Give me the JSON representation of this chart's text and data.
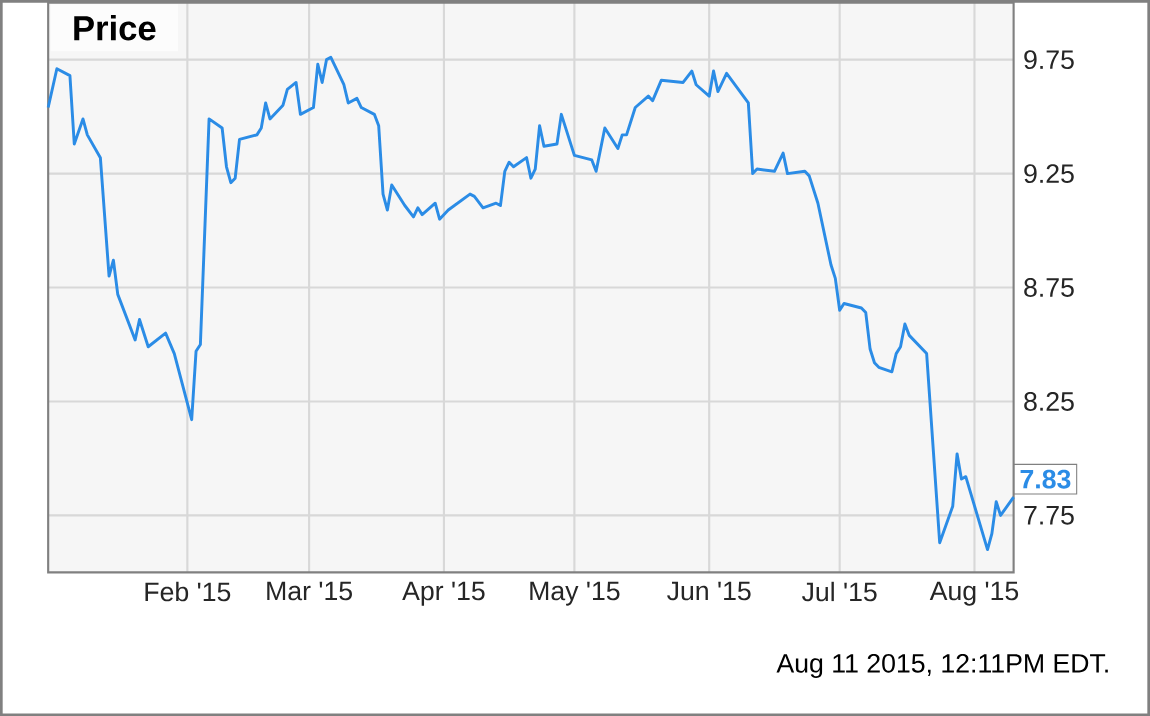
{
  "chart_data": {
    "type": "line",
    "title": "Price",
    "x": [
      "2014-12-31",
      "2015-01-02",
      "2015-01-05",
      "2015-01-06",
      "2015-01-08",
      "2015-01-09",
      "2015-01-12",
      "2015-01-14",
      "2015-01-15",
      "2015-01-16",
      "2015-01-20",
      "2015-01-21",
      "2015-01-23",
      "2015-01-27",
      "2015-01-29",
      "2015-02-02",
      "2015-02-03",
      "2015-02-04",
      "2015-02-06",
      "2015-02-09",
      "2015-02-10",
      "2015-02-11",
      "2015-02-12",
      "2015-02-13",
      "2015-02-17",
      "2015-02-18",
      "2015-02-19",
      "2015-02-20",
      "2015-02-23",
      "2015-02-24",
      "2015-02-26",
      "2015-02-27",
      "2015-03-02",
      "2015-03-03",
      "2015-03-04",
      "2015-03-05",
      "2015-03-06",
      "2015-03-09",
      "2015-03-10",
      "2015-03-12",
      "2015-03-13",
      "2015-03-16",
      "2015-03-17",
      "2015-03-18",
      "2015-03-19",
      "2015-03-20",
      "2015-03-23",
      "2015-03-25",
      "2015-03-26",
      "2015-03-27",
      "2015-03-30",
      "2015-03-31",
      "2015-04-02",
      "2015-04-07",
      "2015-04-08",
      "2015-04-10",
      "2015-04-13",
      "2015-04-14",
      "2015-04-15",
      "2015-04-16",
      "2015-04-17",
      "2015-04-20",
      "2015-04-21",
      "2015-04-22",
      "2015-04-23",
      "2015-04-24",
      "2015-04-27",
      "2015-04-28",
      "2015-05-01",
      "2015-05-05",
      "2015-05-06",
      "2015-05-08",
      "2015-05-11",
      "2015-05-12",
      "2015-05-13",
      "2015-05-15",
      "2015-05-18",
      "2015-05-19",
      "2015-05-21",
      "2015-05-26",
      "2015-05-28",
      "2015-05-29",
      "2015-06-01",
      "2015-06-02",
      "2015-06-03",
      "2015-06-05",
      "2015-06-10",
      "2015-06-11",
      "2015-06-12",
      "2015-06-16",
      "2015-06-18",
      "2015-06-19",
      "2015-06-23",
      "2015-06-24",
      "2015-06-26",
      "2015-06-29",
      "2015-06-30",
      "2015-07-01",
      "2015-07-02",
      "2015-07-06",
      "2015-07-07",
      "2015-07-08",
      "2015-07-09",
      "2015-07-10",
      "2015-07-13",
      "2015-07-14",
      "2015-07-15",
      "2015-07-16",
      "2015-07-17",
      "2015-07-21",
      "2015-07-24",
      "2015-07-27",
      "2015-07-28",
      "2015-07-29",
      "2015-07-30",
      "2015-08-04",
      "2015-08-05",
      "2015-08-06",
      "2015-08-07",
      "2015-08-10"
    ],
    "series": [
      {
        "color": "#2b8ce6",
        "values": [
          9.54,
          9.71,
          9.68,
          9.38,
          9.49,
          9.42,
          9.32,
          8.8,
          8.87,
          8.72,
          8.52,
          8.61,
          8.49,
          8.55,
          8.46,
          8.17,
          8.47,
          8.5,
          9.49,
          9.45,
          9.28,
          9.21,
          9.23,
          9.4,
          9.42,
          9.45,
          9.56,
          9.49,
          9.55,
          9.62,
          9.65,
          9.51,
          9.54,
          9.73,
          9.65,
          9.75,
          9.76,
          9.64,
          9.56,
          9.58,
          9.54,
          9.51,
          9.46,
          9.16,
          9.09,
          9.2,
          9.11,
          9.06,
          9.1,
          9.07,
          9.12,
          9.05,
          9.09,
          9.16,
          9.15,
          9.1,
          9.12,
          9.11,
          9.26,
          9.3,
          9.28,
          9.32,
          9.23,
          9.27,
          9.46,
          9.37,
          9.38,
          9.51,
          9.33,
          9.31,
          9.26,
          9.45,
          9.36,
          9.42,
          9.42,
          9.54,
          9.59,
          9.57,
          9.66,
          9.65,
          9.7,
          9.64,
          9.59,
          9.7,
          9.61,
          9.69,
          9.56,
          9.25,
          9.27,
          9.26,
          9.34,
          9.25,
          9.26,
          9.24,
          9.12,
          8.85,
          8.79,
          8.65,
          8.68,
          8.66,
          8.64,
          8.48,
          8.42,
          8.4,
          8.38,
          8.46,
          8.49,
          8.59,
          8.54,
          8.46,
          7.63,
          7.79,
          8.02,
          7.91,
          7.92,
          7.6,
          7.67,
          7.81,
          7.75,
          7.83
        ]
      }
    ],
    "xlim": [
      "2014-12-31",
      "2015-08-10"
    ],
    "xticks": [
      {
        "value": "2015-02-01",
        "label": "Feb '15"
      },
      {
        "value": "2015-03-01",
        "label": "Mar '15"
      },
      {
        "value": "2015-04-01",
        "label": "Apr '15"
      },
      {
        "value": "2015-05-01",
        "label": "May '15"
      },
      {
        "value": "2015-06-01",
        "label": "Jun '15"
      },
      {
        "value": "2015-07-01",
        "label": "Jul '15"
      },
      {
        "value": "2015-08-01",
        "label": "Aug '15"
      }
    ],
    "ylim": [
      7.5,
      10.0
    ],
    "yticks": [
      7.75,
      8.25,
      8.75,
      9.25,
      9.75
    ],
    "grid": true,
    "marker": "none",
    "line_style": "solid",
    "annotations": [
      {
        "text": "7.83",
        "x": "2015-08-10",
        "y": 7.83
      },
      "Aug 11 2015, 12:11PM EDT."
    ]
  }
}
